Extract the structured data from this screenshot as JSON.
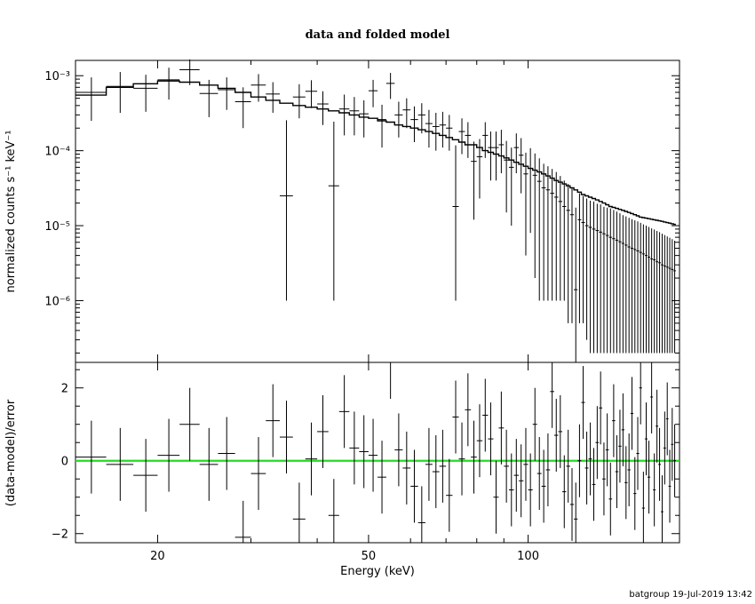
{
  "chart_data": [
    {
      "type": "scatter",
      "panel": "top",
      "title": "data and folded model",
      "xlabel": "",
      "ylabel": "normalized counts s⁻¹ keV⁻¹",
      "xscale": "log",
      "yscale": "log",
      "xlim": [
        14,
        193
      ],
      "ylim": [
        1.5e-07,
        0.0016
      ],
      "ytick_values": [
        1e-06,
        1e-05,
        0.0001,
        0.001
      ],
      "ytick_labels": [
        "10⁻⁶",
        "10⁻⁵",
        "10⁻⁴",
        "10⁻³"
      ],
      "series": [
        {
          "role": "data",
          "x": [
            15,
            17,
            19,
            21,
            23,
            25,
            27,
            29,
            31,
            33,
            35,
            37,
            39,
            41,
            43,
            45,
            47,
            49,
            51,
            53,
            55,
            57,
            59,
            61,
            63,
            65,
            67,
            69,
            71,
            73,
            75,
            77,
            79,
            81,
            83,
            85,
            87,
            89,
            91,
            93,
            95,
            97,
            99,
            101,
            103,
            105,
            107,
            109,
            111,
            113,
            115,
            117,
            119,
            121,
            123,
            125,
            127,
            129,
            131,
            133,
            135,
            137,
            139,
            141,
            143,
            145,
            147,
            149,
            151,
            153,
            155,
            157,
            159,
            161,
            163,
            165,
            167,
            169,
            171,
            173,
            175,
            177,
            179,
            181,
            183,
            185,
            187,
            189
          ],
          "xerr": [
            1,
            1,
            1,
            1,
            1,
            1,
            1,
            1,
            1,
            1,
            1,
            1,
            1,
            1,
            1,
            1,
            1,
            1,
            1,
            1,
            1,
            1,
            1,
            1,
            1,
            1,
            1,
            1,
            1,
            1,
            1,
            1,
            1,
            1,
            1,
            1,
            1,
            1,
            1,
            1,
            1,
            1,
            1,
            1,
            1,
            1,
            1,
            1,
            1,
            1,
            1,
            1,
            1,
            1,
            1,
            1,
            1,
            1,
            1,
            1,
            1,
            1,
            1,
            1,
            1,
            1,
            1,
            1,
            1,
            1,
            1,
            1,
            1,
            1,
            1,
            1,
            1,
            1,
            1,
            1,
            1,
            1,
            1,
            1,
            1,
            1,
            1,
            1
          ],
          "y": [
            0.0006,
            0.00072,
            0.00068,
            0.00088,
            0.0012,
            0.00058,
            0.00065,
            0.00045,
            0.00075,
            0.00057,
            2.5e-05,
            0.00052,
            0.00062,
            0.00042,
            3.4e-05,
            0.00036,
            0.00034,
            0.00031,
            0.00063,
            0.00026,
            0.00079,
            0.0003,
            0.00035,
            0.00026,
            0.0003,
            0.00023,
            0.00021,
            0.00022,
            0.0002,
            1.8e-05,
            0.00018,
            0.00016,
            7.2e-05,
            8.3e-05,
            0.00016,
            0.00011,
            0.00011,
            0.00012,
            7.5e-05,
            6e-05,
            0.00011,
            8.7e-05,
            4.9e-05,
            5.8e-05,
            4.7e-05,
            3.9e-05,
            3.2e-05,
            3e-05,
            2.7e-05,
            2.4e-05,
            2.1e-05,
            1.8e-05,
            1.6e-05,
            1.4e-05,
            1.4e-06,
            1.2e-05,
            1.1e-05,
            1e-05,
            9.5e-06,
            9e-06,
            8.6e-06,
            8.2e-06,
            7.8e-06,
            7.4e-06,
            7e-06,
            6.7e-06,
            6.4e-06,
            6.1e-06,
            5.8e-06,
            5.5e-06,
            5.2e-06,
            5e-06,
            4.8e-06,
            4.6e-06,
            4.4e-06,
            4.2e-06,
            4e-06,
            3.8e-06,
            3.6e-06,
            3.5e-06,
            3.3e-06,
            3.2e-06,
            3e-06,
            2.9e-06,
            2.8e-06,
            2.7e-06,
            2.6e-06,
            2.5e-06
          ],
          "yerr_low": [
            0.00035,
            0.0004,
            0.00035,
            0.0004,
            0.00045,
            0.0003,
            0.0003,
            0.00025,
            0.0003,
            0.00025,
            2.4e-05,
            0.00025,
            0.00025,
            0.0002,
            3.3e-05,
            0.0002,
            0.00018,
            0.00016,
            0.00025,
            0.00015,
            0.0003,
            0.00015,
            0.00015,
            0.00013,
            0.00013,
            0.00012,
            0.00011,
            0.00011,
            0.0001,
            1.7e-05,
            9e-05,
            8e-05,
            6e-05,
            6e-05,
            8e-05,
            7e-05,
            7e-05,
            7e-05,
            6e-05,
            5e-05,
            6e-05,
            6e-05,
            4.5e-05,
            5e-05,
            4.5e-05,
            3.8e-05,
            3.1e-05,
            2.9e-05,
            2.6e-05,
            2.3e-05,
            2e-05,
            1.7e-05,
            1.55e-05,
            1.35e-05,
            1.3e-06,
            1.15e-05,
            1.05e-05,
            9.7e-06,
            9.3e-06,
            8.8e-06,
            8.4e-06,
            8e-06,
            7.6e-06,
            7.2e-06,
            6.8e-06,
            6.5e-06,
            6.2e-06,
            5.9e-06,
            5.6e-06,
            5.3e-06,
            5e-06,
            4.8e-06,
            4.6e-06,
            4.4e-06,
            4.2e-06,
            4e-06,
            3.8e-06,
            3.6e-06,
            3.4e-06,
            3.3e-06,
            3.1e-06,
            3e-06,
            2.8e-06,
            2.7e-06,
            2.6e-06,
            2.5e-06,
            2.4e-06,
            2.3e-06
          ],
          "yerr_high": [
            0.00035,
            0.0004,
            0.00035,
            0.0004,
            0.00045,
            0.0003,
            0.0003,
            0.00025,
            0.0003,
            0.00025,
            0.00023,
            0.00025,
            0.00025,
            0.0002,
            0.00021,
            0.0002,
            0.00018,
            0.00016,
            0.00025,
            0.00015,
            0.0003,
            0.00015,
            0.00015,
            0.00013,
            0.00013,
            0.00012,
            0.00011,
            0.00011,
            0.0001,
            0.0001,
            9e-05,
            8e-05,
            6e-05,
            6e-05,
            8e-05,
            7e-05,
            7e-05,
            7e-05,
            6e-05,
            5e-05,
            6e-05,
            6e-05,
            4.5e-05,
            5e-05,
            4.5e-05,
            4e-05,
            3.5e-05,
            3.2e-05,
            3e-05,
            2.8e-05,
            2.5e-05,
            2.2e-05,
            2e-05,
            1.8e-05,
            1.6e-05,
            1.5e-05,
            1.4e-05,
            1.3e-05,
            1.2e-05,
            1.2e-05,
            1.1e-05,
            1.1e-05,
            1e-05,
            1e-05,
            1e-05,
            9.5e-06,
            9e-06,
            8.5e-06,
            8e-06,
            7.8e-06,
            7.5e-06,
            7.2e-06,
            7e-06,
            6.8e-06,
            6.5e-06,
            6.2e-06,
            6e-06,
            5.8e-06,
            5.6e-06,
            5.4e-06,
            5.2e-06,
            5e-06,
            4.8e-06,
            4.6e-06,
            4.4e-06,
            4.2e-06,
            4e-06,
            3.8e-06
          ]
        },
        {
          "role": "model",
          "x": [
            15,
            17,
            19,
            21,
            23,
            25,
            27,
            29,
            31,
            33,
            35,
            37,
            39,
            41,
            43,
            45,
            47,
            49,
            51,
            53,
            55,
            57,
            59,
            61,
            63,
            65,
            67,
            69,
            71,
            73,
            75,
            77,
            79,
            81,
            83,
            85,
            87,
            89,
            91,
            93,
            95,
            97,
            99,
            101,
            103,
            105,
            107,
            109,
            111,
            113,
            115,
            117,
            119,
            121,
            123,
            125,
            127,
            129,
            131,
            133,
            135,
            137,
            139,
            141,
            143,
            145,
            147,
            149,
            151,
            153,
            155,
            157,
            159,
            161,
            163,
            165,
            167,
            169,
            171,
            173,
            175,
            177,
            179,
            181,
            183,
            185,
            187,
            189
          ],
          "y": [
            0.00055,
            0.0007,
            0.00078,
            0.00085,
            0.00082,
            0.00075,
            0.00068,
            0.0006,
            0.00052,
            0.00047,
            0.00043,
            0.0004,
            0.00038,
            0.00036,
            0.00034,
            0.00032,
            0.0003,
            0.00028,
            0.00027,
            0.00025,
            0.00024,
            0.00022,
            0.00021,
            0.0002,
            0.00019,
            0.00018,
            0.00017,
            0.00016,
            0.00015,
            0.00014,
            0.00013,
            0.00012,
            0.00012,
            0.00011,
            0.0001,
            9.5e-05,
            9e-05,
            8.5e-05,
            8e-05,
            7.5e-05,
            7e-05,
            6.6e-05,
            6.2e-05,
            5.8e-05,
            5.5e-05,
            5.2e-05,
            4.9e-05,
            4.6e-05,
            4.3e-05,
            4e-05,
            3.8e-05,
            3.6e-05,
            3.4e-05,
            3.2e-05,
            3e-05,
            2.8e-05,
            2.6e-05,
            2.5e-05,
            2.4e-05,
            2.3e-05,
            2.2e-05,
            2.1e-05,
            2e-05,
            1.9e-05,
            1.8e-05,
            1.75e-05,
            1.7e-05,
            1.65e-05,
            1.6e-05,
            1.55e-05,
            1.5e-05,
            1.45e-05,
            1.4e-05,
            1.35e-05,
            1.3e-05,
            1.28e-05,
            1.26e-05,
            1.24e-05,
            1.22e-05,
            1.2e-05,
            1.18e-05,
            1.16e-05,
            1.14e-05,
            1.12e-05,
            1.1e-05,
            1.08e-05,
            1.06e-05,
            1.04e-05
          ]
        }
      ]
    },
    {
      "type": "scatter",
      "panel": "bottom",
      "title": "",
      "xlabel": "Energy (keV)",
      "ylabel": "(data-model)/error",
      "xscale": "log",
      "yscale": "linear",
      "xlim": [
        14,
        193
      ],
      "ylim": [
        -2.25,
        2.7
      ],
      "xtick_values": [
        20,
        50,
        100
      ],
      "xtick_labels": [
        "20",
        "50",
        "100"
      ],
      "ytick_values": [
        -2,
        0,
        2
      ],
      "ytick_labels": [
        "−2",
        "0",
        "2"
      ],
      "reference_line": {
        "y": 0,
        "color": "#22dd22"
      },
      "series": [
        {
          "role": "residuals",
          "x": [
            15,
            17,
            19,
            21,
            23,
            25,
            27,
            29,
            31,
            33,
            35,
            37,
            39,
            41,
            43,
            45,
            47,
            49,
            51,
            53,
            55,
            57,
            59,
            61,
            63,
            65,
            67,
            69,
            71,
            73,
            75,
            77,
            79,
            81,
            83,
            85,
            87,
            89,
            91,
            93,
            95,
            97,
            99,
            101,
            103,
            105,
            107,
            109,
            111,
            113,
            115,
            117,
            119,
            121,
            123,
            125,
            127,
            129,
            131,
            133,
            135,
            137,
            139,
            141,
            143,
            145,
            147,
            149,
            151,
            153,
            155,
            157,
            159,
            161,
            163,
            165,
            167,
            169,
            171,
            173,
            175,
            177,
            179,
            181,
            183,
            185,
            187,
            189
          ],
          "xerr": [
            1,
            1,
            1,
            1,
            1,
            1,
            1,
            1,
            1,
            1,
            1,
            1,
            1,
            1,
            1,
            1,
            1,
            1,
            1,
            1,
            1,
            1,
            1,
            1,
            1,
            1,
            1,
            1,
            1,
            1,
            1,
            1,
            1,
            1,
            1,
            1,
            1,
            1,
            1,
            1,
            1,
            1,
            1,
            1,
            1,
            1,
            1,
            1,
            1,
            1,
            1,
            1,
            1,
            1,
            1,
            1,
            1,
            1,
            1,
            1,
            1,
            1,
            1,
            1,
            1,
            1,
            1,
            1,
            1,
            1,
            1,
            1,
            1,
            1,
            1,
            1,
            1,
            1,
            1,
            1,
            1,
            1,
            1,
            1,
            1,
            1,
            1,
            1
          ],
          "y": [
            0.1,
            -0.1,
            -0.4,
            0.15,
            1.0,
            -0.1,
            0.2,
            -2.1,
            -0.35,
            1.1,
            0.65,
            -1.6,
            0.05,
            0.8,
            -1.5,
            1.35,
            0.35,
            0.25,
            0.15,
            -0.45,
            2.7,
            0.3,
            -0.2,
            -0.7,
            -1.7,
            -0.1,
            -0.3,
            -0.15,
            -0.95,
            1.2,
            0.05,
            1.4,
            0.1,
            0.55,
            1.25,
            0.6,
            -1.0,
            0.9,
            -0.15,
            -0.8,
            -0.4,
            -0.55,
            -0.1,
            -0.8,
            1.0,
            -0.35,
            -0.7,
            -0.25,
            1.9,
            0.7,
            0.8,
            -0.85,
            -0.15,
            -1.2,
            -1.6,
            0.0,
            1.6,
            -0.2,
            0.05,
            -0.65,
            0.5,
            1.45,
            -0.5,
            0.3,
            -1.05,
            1.1,
            -0.3,
            0.4,
            0.85,
            -0.6,
            -0.25,
            1.3,
            -0.9,
            0.2,
            2.0,
            -1.3,
            0.6,
            -0.45,
            1.75,
            -0.8,
            0.95,
            -0.1,
            -1.4,
            0.35,
            1.15,
            -0.7,
            0.45,
            0.0
          ],
          "yerr": [
            1,
            1,
            1,
            1,
            1,
            1,
            1,
            1,
            1,
            1,
            1,
            1,
            1,
            1,
            1,
            1,
            1,
            1,
            1,
            1,
            1,
            1,
            1,
            1,
            1,
            1,
            1,
            1,
            1,
            1,
            1,
            1,
            1,
            1,
            1,
            1,
            1,
            1,
            1,
            1,
            1,
            1,
            1,
            1,
            1,
            1,
            1,
            1,
            1,
            1,
            1,
            1,
            1,
            1,
            1,
            1,
            1,
            1,
            1,
            1,
            1,
            1,
            1,
            1,
            1,
            1,
            1,
            1,
            1,
            1,
            1,
            1,
            1,
            1,
            1,
            1,
            1,
            1,
            1,
            1,
            1,
            1,
            1,
            1,
            1,
            1,
            1,
            1
          ]
        }
      ]
    }
  ],
  "footer": {
    "text": "batgroup 19-Jul-2019 13:42"
  }
}
